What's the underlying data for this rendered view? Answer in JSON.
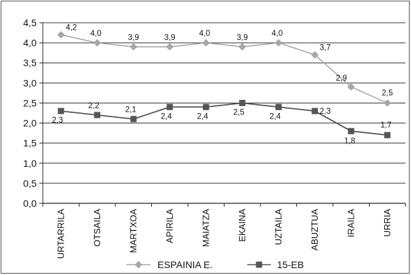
{
  "chart_data": {
    "type": "line",
    "categories": [
      "URTARRILA",
      "OTSAILA",
      "MARTXOA",
      "APIRILA",
      "MAIATZA",
      "EKAINA",
      "UZTAILA",
      "ABUZTUA",
      "IRAILA",
      "URRIA"
    ],
    "series": [
      {
        "name": "ESPAINIA E.",
        "values": [
          4.2,
          4.0,
          3.9,
          3.9,
          4.0,
          3.9,
          4.0,
          3.7,
          2.9,
          2.5
        ],
        "labels": [
          "4,2",
          "4,0",
          "3,9",
          "3,9",
          "4,0",
          "3,9",
          "4,0",
          "3,7",
          "2,9",
          "2,5"
        ],
        "color": "#a8a8a8",
        "marker": "diamond"
      },
      {
        "name": "15-EB",
        "values": [
          2.3,
          2.2,
          2.1,
          2.4,
          2.4,
          2.5,
          2.4,
          2.3,
          1.8,
          1.7
        ],
        "labels": [
          "2,3",
          "2,2",
          "2,1",
          "2,4",
          "2,4",
          "2,5",
          "2,4",
          "2,3",
          "1,8",
          "1,7"
        ],
        "color": "#555555",
        "marker": "square"
      }
    ],
    "ylim": [
      0,
      4.5
    ],
    "yticks": [
      "0,0",
      "0,5",
      "1,0",
      "1,5",
      "2,0",
      "2,5",
      "3,0",
      "3,5",
      "4,0",
      "4,5"
    ],
    "grid": true,
    "legend_position": "bottom",
    "title": "",
    "xlabel": "",
    "ylabel": ""
  }
}
